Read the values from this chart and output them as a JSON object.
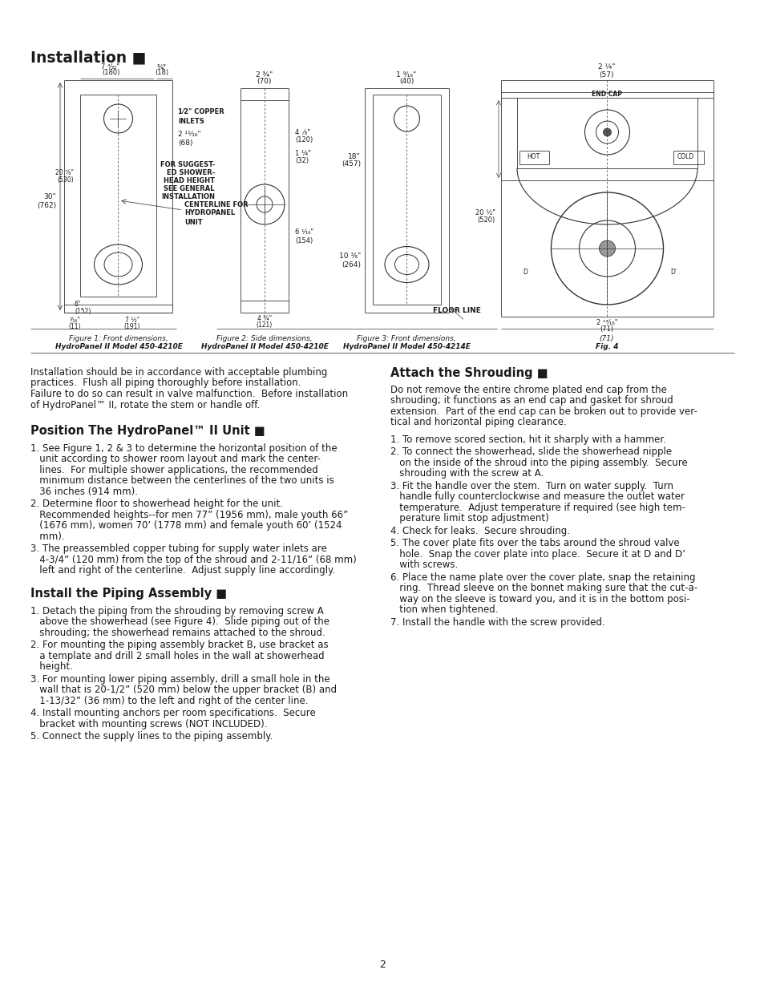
{
  "bg_color": "#ffffff",
  "text_color": "#1a1a1a",
  "page_number": "2",
  "section_header": "Installation ■",
  "intro_text": [
    "Installation should be in accordance with acceptable plumbing",
    "practices.  Flush all piping thoroughly before installation.",
    "Failure to do so can result in valve malfunction.  Before installation",
    "of HydroPanel™ II, rotate the stem or handle off."
  ],
  "pos_header": "Position The HydroPanel™ II Unit ■",
  "pos_items": [
    [
      "1. See Figure 1, 2 & 3 to determine the horizontal position of the",
      "   unit according to shower room layout and mark the center-",
      "   lines.  For multiple shower applications, the recommended",
      "   minimum distance between the centerlines of the two units is",
      "   36 inches (914 mm)."
    ],
    [
      "2. Determine floor to showerhead height for the unit.",
      "   Recommended heights--for men 77” (1956 mm), male youth 66”",
      "   (1676 mm), women 70’ (1778 mm) and female youth 60’ (1524",
      "   mm)."
    ],
    [
      "3. The preassembled copper tubing for supply water inlets are",
      "   4-3/4” (120 mm) from the top of the shroud and 2-11/16” (68 mm)",
      "   left and right of the centerline.  Adjust supply line accordingly."
    ]
  ],
  "install_header": "Install the Piping Assembly ■",
  "install_items": [
    [
      "1. Detach the piping from the shrouding by removing screw A",
      "   above the showerhead (see Figure 4).  Slide piping out of the",
      "   shrouding; the showerhead remains attached to the shroud."
    ],
    [
      "2. For mounting the piping assembly bracket B, use bracket as",
      "   a template and drill 2 small holes in the wall at showerhead",
      "   height."
    ],
    [
      "3. For mounting lower piping assembly, drill a small hole in the",
      "   wall that is 20-1/2” (520 mm) below the upper bracket (B) and",
      "   1-13/32” (36 mm) to the left and right of the center line."
    ],
    [
      "4. Install mounting anchors per room specifications.  Secure",
      "   bracket with mounting screws (NOT INCLUDED)."
    ],
    [
      "5. Connect the supply lines to the piping assembly."
    ]
  ],
  "attach_header": "Attach the Shrouding ■",
  "attach_intro": [
    "Do not remove the entire chrome plated end cap from the",
    "shrouding; it functions as an end cap and gasket for shroud",
    "extension.  Part of the end cap can be broken out to provide ver-",
    "tical and horizontal piping clearance."
  ],
  "attach_items": [
    [
      "1. To remove scored section, hit it sharply with a hammer."
    ],
    [
      "2. To connect the showerhead, slide the showerhead nipple",
      "   on the inside of the shroud into the piping assembly.  Secure",
      "   shrouding with the screw at A."
    ],
    [
      "3. Fit the handle over the stem.  Turn on water supply.  Turn",
      "   handle fully counterclockwise and measure the outlet water",
      "   temperature.  Adjust temperature if required (see high tem-",
      "   perature limit stop adjustment)"
    ],
    [
      "4. Check for leaks.  Secure shrouding."
    ],
    [
      "5. The cover plate fits over the tabs around the shroud valve",
      "   hole.  Snap the cover plate into place.  Secure it at D and D’",
      "   with screws."
    ],
    [
      "6. Place the name plate over the cover plate, snap the retaining",
      "   ring.  Thread sleeve on the bonnet making sure that the cut-a-",
      "   way on the sleeve is toward you, and it is in the bottom posi-",
      "   tion when tightened."
    ],
    [
      "7. Install the handle with the screw provided."
    ]
  ],
  "fig1_caption": [
    "Figure 1: Front dimensions,",
    "HydroPanel II Model 450-4210E"
  ],
  "fig2_caption": [
    "Figure 2: Side dimensions,",
    "HydroPanel II Model 450-4210E"
  ],
  "fig3_caption": [
    "Figure 3: Front dimensions,",
    "HydroPanel II Model 450-4214E"
  ],
  "fig4_caption": [
    "(71)",
    "Fig. 4"
  ]
}
